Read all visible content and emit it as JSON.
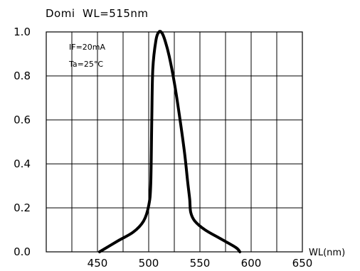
{
  "chart_data": {
    "type": "line",
    "title": "Domi  WL=515nm",
    "xlabel": "WL(nm)",
    "ylabel": "",
    "xlim": [
      400,
      650
    ],
    "ylim": [
      0.0,
      1.0
    ],
    "x_ticks": [
      400,
      425,
      450,
      475,
      500,
      525,
      550,
      575,
      600,
      625,
      650
    ],
    "x_tick_labels": [
      "",
      "",
      "450",
      "",
      "500",
      "",
      "550",
      "",
      "600",
      "",
      "650"
    ],
    "y_ticks": [
      0.0,
      0.2,
      0.4,
      0.6,
      0.8,
      1.0
    ],
    "y_tick_labels": [
      "0.0",
      "0.2",
      "0.4",
      "0.6",
      "0.8",
      "1.0"
    ],
    "grid": true,
    "annotations": [
      "IF=20mA",
      "Ta=25°C"
    ],
    "line_color": "#000000",
    "series": [
      {
        "x": [
          452,
          470,
          485,
          495,
          500,
          502,
          503,
          504,
          507,
          510,
          513,
          516,
          520,
          525,
          530,
          535,
          538,
          540,
          541,
          545,
          555,
          570,
          585,
          589
        ],
        "y": [
          0.0,
          0.05,
          0.09,
          0.14,
          0.21,
          0.31,
          0.6,
          0.83,
          0.96,
          1.0,
          0.995,
          0.96,
          0.89,
          0.77,
          0.62,
          0.45,
          0.32,
          0.24,
          0.18,
          0.14,
          0.1,
          0.06,
          0.02,
          0.0
        ]
      }
    ]
  }
}
